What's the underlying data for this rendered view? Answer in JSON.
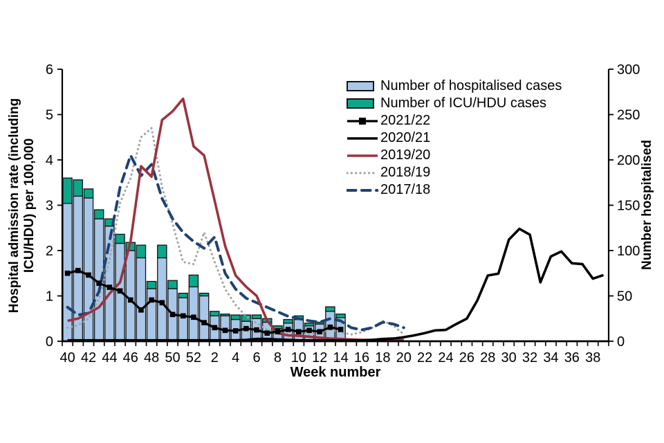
{
  "page": {
    "background": "#ffffff"
  },
  "chart_data": {
    "type": "combo-bar-line",
    "title": "",
    "x_axis": {
      "title": "Week number",
      "categories": [
        "40",
        "41",
        "42",
        "43",
        "44",
        "45",
        "46",
        "47",
        "48",
        "49",
        "50",
        "51",
        "52",
        "1",
        "2",
        "3",
        "4",
        "5",
        "6",
        "7",
        "8",
        "9",
        "10",
        "11",
        "12",
        "13",
        "14",
        "15",
        "16",
        "17",
        "18",
        "19",
        "20",
        "21",
        "22",
        "23",
        "24",
        "25",
        "26",
        "27",
        "28",
        "29",
        "30",
        "31",
        "32",
        "33",
        "34",
        "35",
        "36",
        "37",
        "38",
        "39"
      ],
      "label_every": 2,
      "grid": false
    },
    "y_left": {
      "title_line1": "Hospital admission rate (including",
      "title_line2": "ICU/HDU) per 100,000",
      "min": 0,
      "max": 6,
      "ticks": [
        0,
        1,
        2,
        3,
        4,
        5,
        6
      ],
      "grid": false
    },
    "y_right": {
      "title": "Number hospitalised",
      "min": 0,
      "max": 300,
      "ticks": [
        0,
        50,
        100,
        150,
        200,
        250,
        300
      ],
      "grid": false
    },
    "colors": {
      "bar_hospitalised": "#a9c7e9",
      "bar_icu": "#0da68a",
      "bar_border": "#121212",
      "season_2021_22": "#000000",
      "season_2020_21": "#000000",
      "season_2019_20": "#9c3240",
      "season_2018_19": "#a3a3a3",
      "season_2017_18": "#1e4272",
      "axis": "#000000"
    },
    "bars": {
      "stacked": true,
      "axis": "right",
      "series": [
        {
          "name": "Number of hospitalised cases",
          "color": "#a9c7e9",
          "values": [
            152,
            160,
            158,
            135,
            127,
            108,
            100,
            92,
            58,
            92,
            58,
            48,
            60,
            50,
            28,
            28,
            24,
            22,
            25,
            21,
            14,
            20,
            24,
            17,
            19,
            33,
            26,
            0,
            0,
            0,
            0,
            0,
            0,
            0,
            0,
            0,
            0,
            0,
            0,
            0,
            0,
            0,
            0,
            0,
            0,
            0,
            0,
            0,
            0,
            0,
            0,
            0
          ]
        },
        {
          "name": "Number of ICU/HDU cases",
          "color": "#0da68a",
          "values": [
            28,
            18,
            10,
            10,
            8,
            10,
            9,
            14,
            8,
            14,
            9,
            5,
            13,
            3,
            5,
            2,
            5,
            7,
            4,
            4,
            3,
            4,
            4,
            3,
            2,
            5,
            4,
            0,
            0,
            0,
            0,
            0,
            0,
            0,
            0,
            0,
            0,
            0,
            0,
            0,
            0,
            0,
            0,
            0,
            0,
            0,
            0,
            0,
            0,
            0,
            0,
            0
          ]
        }
      ]
    },
    "lines": [
      {
        "name": "2021/22",
        "color": "#000000",
        "style": "solid",
        "marker": "square",
        "width": 3.2,
        "axis": "left",
        "values": [
          1.5,
          1.56,
          1.46,
          1.28,
          1.19,
          1.11,
          0.91,
          0.69,
          0.91,
          0.85,
          0.59,
          0.56,
          0.53,
          0.41,
          0.3,
          0.24,
          0.23,
          0.28,
          0.25,
          0.18,
          0.21,
          0.26,
          0.21,
          0.24,
          0.21,
          0.31,
          0.26,
          null,
          null,
          null,
          null,
          null,
          null,
          null,
          null,
          null,
          null,
          null,
          null,
          null,
          null,
          null,
          null,
          null,
          null,
          null,
          null,
          null,
          null,
          null,
          null,
          null
        ]
      },
      {
        "name": "2020/21",
        "color": "#000000",
        "style": "solid",
        "marker": "none",
        "width": 3.6,
        "axis": "left",
        "values": [
          0.02,
          0.02,
          0.02,
          0.02,
          0.02,
          0.02,
          0.02,
          0.02,
          0.02,
          0.02,
          0.02,
          0.02,
          0.02,
          0.02,
          0.02,
          0.02,
          0.02,
          0.03,
          0.05,
          0.05,
          0.04,
          0.03,
          0.02,
          0.02,
          0.02,
          0.02,
          0.02,
          0.02,
          0.02,
          0.03,
          0.05,
          0.06,
          0.09,
          0.13,
          0.18,
          0.24,
          0.25,
          0.38,
          0.5,
          0.9,
          1.45,
          1.49,
          2.24,
          2.48,
          2.35,
          1.3,
          1.87,
          1.98,
          1.72,
          1.7,
          1.38,
          1.46
        ]
      },
      {
        "name": "2019/20",
        "color": "#9c3240",
        "style": "solid",
        "marker": "none",
        "width": 3.6,
        "axis": "left",
        "values": [
          0.45,
          0.5,
          0.62,
          0.75,
          1.05,
          1.3,
          2.2,
          3.86,
          3.63,
          4.88,
          5.07,
          5.35,
          4.3,
          4.1,
          3.1,
          2.1,
          1.45,
          1.2,
          1.0,
          0.45,
          0.18,
          0.13,
          0.12,
          0.1,
          0.08,
          0.06,
          0.05,
          0.04,
          0.03,
          0.03,
          0.03,
          0.03,
          0.03,
          null,
          null,
          null,
          null,
          null,
          null,
          null,
          null,
          null,
          null,
          null,
          null,
          null,
          null,
          null,
          null,
          null,
          null,
          null
        ]
      },
      {
        "name": "2018/19",
        "color": "#a3a3a3",
        "style": "dotted",
        "marker": "none",
        "width": 3.2,
        "axis": "left",
        "values": [
          0.3,
          0.35,
          0.5,
          0.95,
          1.8,
          3.05,
          3.6,
          4.5,
          4.7,
          3.4,
          2.6,
          1.75,
          1.7,
          2.4,
          1.75,
          1.15,
          0.8,
          0.55,
          0.4,
          0.25,
          0.18,
          0.15,
          0.15,
          0.15,
          0.18,
          0.25,
          0.2,
          0.15,
          0.2,
          0.3,
          0.45,
          0.35,
          0.15,
          null,
          null,
          null,
          null,
          null,
          null,
          null,
          null,
          null,
          null,
          null,
          null,
          null,
          null,
          null,
          null,
          null,
          null,
          null
        ]
      },
      {
        "name": "2017/18",
        "color": "#1e4272",
        "style": "dashed",
        "marker": "none",
        "width": 4,
        "axis": "left",
        "values": [
          0.75,
          0.58,
          0.62,
          1.1,
          2.2,
          3.4,
          4.1,
          3.65,
          3.9,
          3.15,
          2.7,
          2.4,
          2.2,
          2.05,
          2.3,
          1.5,
          1.15,
          0.95,
          0.85,
          0.75,
          0.65,
          0.55,
          0.5,
          0.45,
          0.42,
          0.5,
          0.45,
          0.3,
          0.25,
          0.3,
          0.42,
          0.38,
          0.3,
          null,
          null,
          null,
          null,
          null,
          null,
          null,
          null,
          null,
          null,
          null,
          null,
          null,
          null,
          null,
          null,
          null,
          null,
          null
        ]
      }
    ],
    "legend": {
      "position": "inside-top-right"
    }
  }
}
